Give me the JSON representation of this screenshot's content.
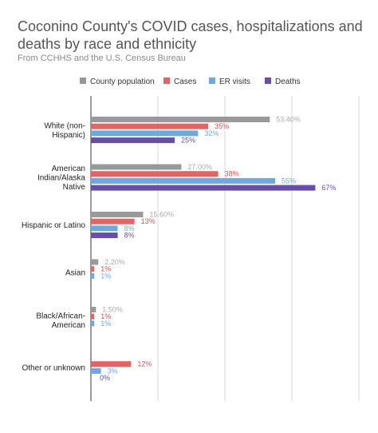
{
  "title": "Coconino County's COVID cases, hospitalizations and deaths by race and ethnicity",
  "subtitle": "From CCHHS and the U.S. Census Bureau",
  "chart_data": {
    "type": "bar",
    "orientation": "horizontal",
    "categories": [
      [
        "White (non-",
        "Hispanic)"
      ],
      [
        "American",
        "Indian/Alaska",
        "Native"
      ],
      [
        "Hispanic or Latino"
      ],
      [
        "Asian"
      ],
      [
        "Black/African-",
        "American"
      ],
      [
        "Other or unknown"
      ]
    ],
    "series": [
      {
        "name": "County population",
        "color": "#999999",
        "label_color": "#aaaaaa",
        "values": [
          53.4,
          27.0,
          15.6,
          2.2,
          1.5,
          null
        ],
        "labels": [
          "53.40%",
          "27.00%",
          "15.60%",
          "2.20%",
          "1.50%",
          ""
        ]
      },
      {
        "name": "Cases",
        "color": "#e06666",
        "label_color": "#cc5555",
        "values": [
          35,
          38,
          13,
          1,
          1,
          12
        ],
        "labels": [
          "35%",
          "38%",
          "13%",
          "1%",
          "1%",
          "12%"
        ]
      },
      {
        "name": "ER visits",
        "color": "#6fa8dc",
        "label_color": "#6fa8dc",
        "values": [
          32,
          55,
          8,
          1,
          1,
          3
        ],
        "labels": [
          "32%",
          "55%",
          "8%",
          "1%",
          "1%",
          "3%"
        ]
      },
      {
        "name": "Deaths",
        "color": "#674ea7",
        "label_color": "#674ea7",
        "values": [
          25,
          67,
          8,
          null,
          null,
          0
        ],
        "labels": [
          "25%",
          "67%",
          "8%",
          "",
          "",
          "0%"
        ]
      }
    ],
    "xlim": [
      0,
      80
    ],
    "grid": true,
    "legend_position": "top"
  }
}
